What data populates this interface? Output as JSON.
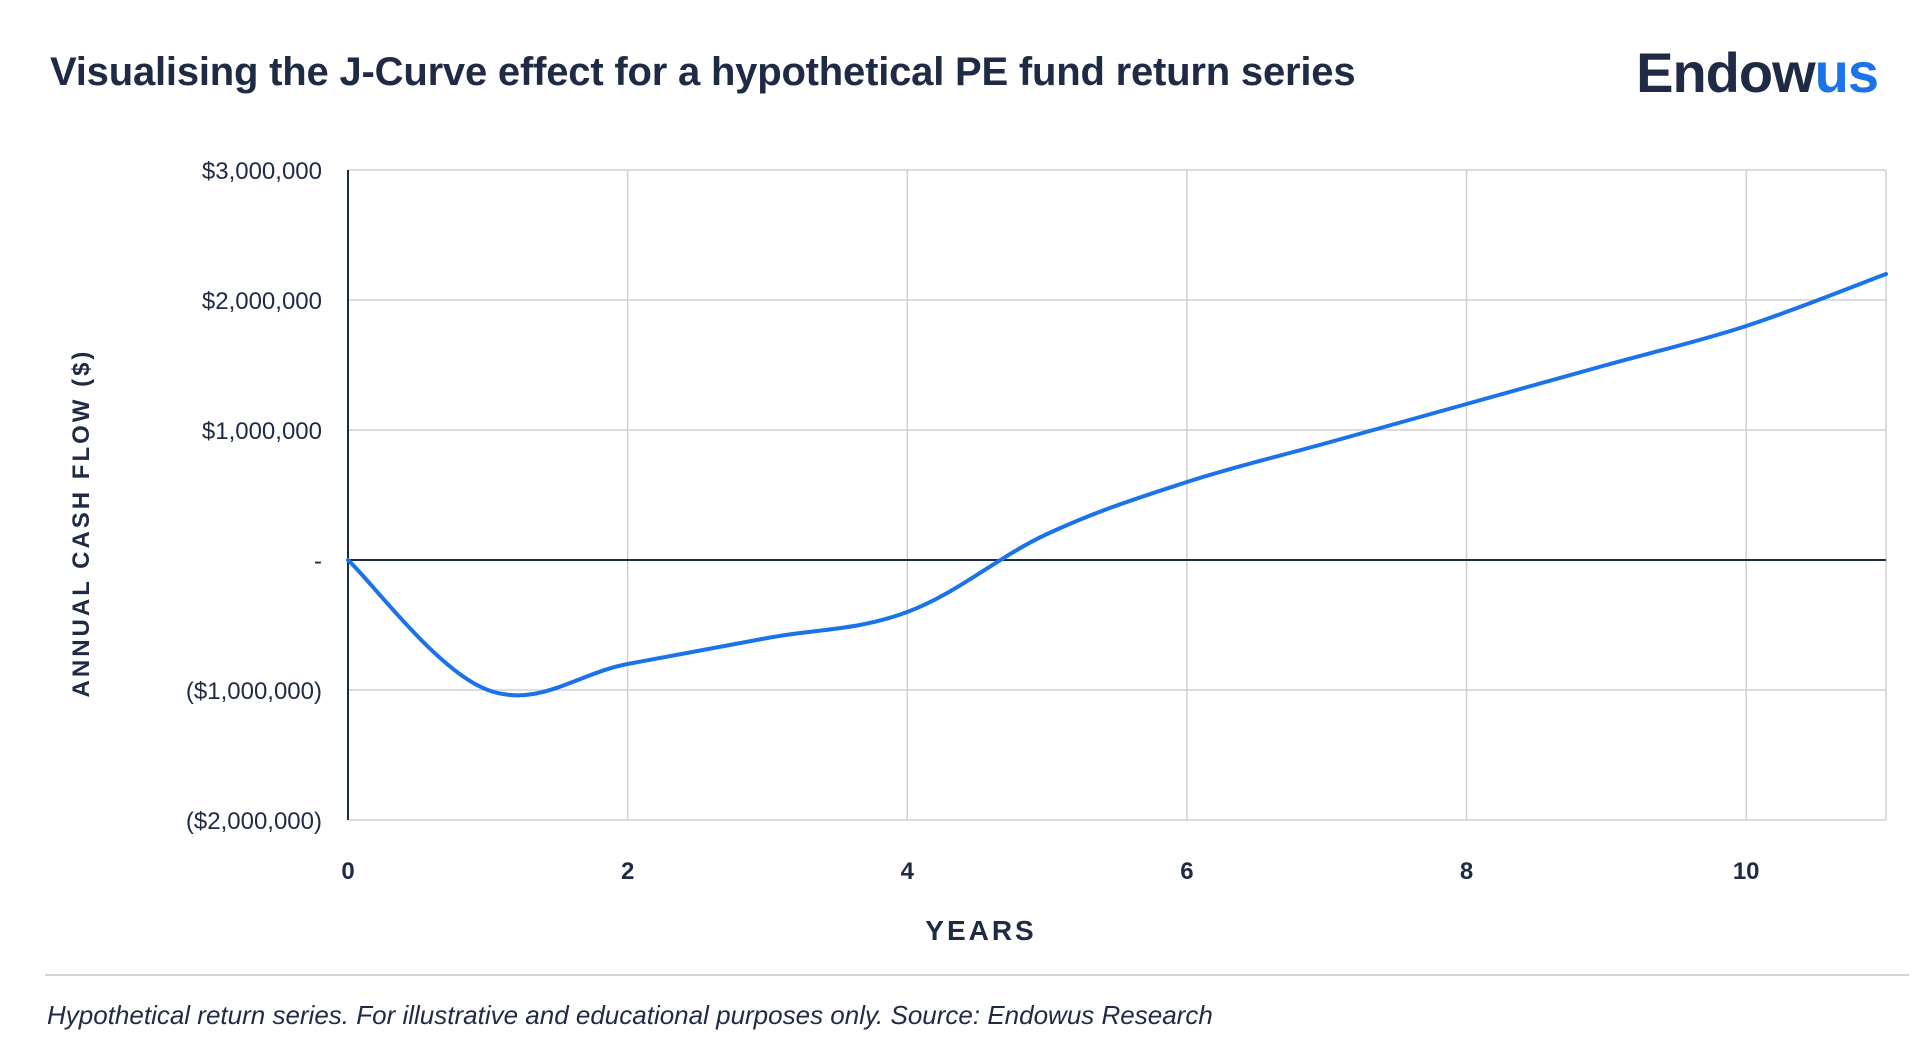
{
  "header": {
    "title": "Visualising the J-Curve effect for a hypothetical PE fund return series",
    "logo_main": "Endow",
    "logo_accent": "us"
  },
  "footnote": "Hypothetical return series. For illustrative and educational purposes only. Source: Endowus Research",
  "colors": {
    "line": "#1a73e8",
    "text": "#1f2a44",
    "grid": "#d0d0d0",
    "zero_line": "#1f2a44"
  },
  "chart_data": {
    "type": "line",
    "title": "Visualising the J-Curve effect for a hypothetical PE fund return series",
    "xlabel": "YEARS",
    "ylabel": "ANNUAL CASH FLOW ($)",
    "xlim": [
      0,
      11
    ],
    "ylim": [
      -2000000,
      3000000
    ],
    "x_ticks": [
      {
        "value": 0,
        "label": "0"
      },
      {
        "value": 2,
        "label": "2"
      },
      {
        "value": 4,
        "label": "4"
      },
      {
        "value": 6,
        "label": "6"
      },
      {
        "value": 8,
        "label": "8"
      },
      {
        "value": 10,
        "label": "10"
      }
    ],
    "y_ticks": [
      {
        "value": 3000000,
        "label": "$3,000,000"
      },
      {
        "value": 2000000,
        "label": "$2,000,000"
      },
      {
        "value": 1000000,
        "label": "$1,000,000"
      },
      {
        "value": 0,
        "label": "-"
      },
      {
        "value": -1000000,
        "label": "($1,000,000)"
      },
      {
        "value": -2000000,
        "label": "($2,000,000)"
      }
    ],
    "grid": true,
    "legend": "none",
    "series": [
      {
        "x": [
          0,
          1,
          2,
          3,
          4,
          5,
          6,
          7,
          8,
          9,
          10,
          11
        ],
        "y": [
          0,
          -1000000,
          -800000,
          -600000,
          -400000,
          200000,
          600000,
          900000,
          1200000,
          1500000,
          1800000,
          2200000
        ]
      }
    ]
  }
}
